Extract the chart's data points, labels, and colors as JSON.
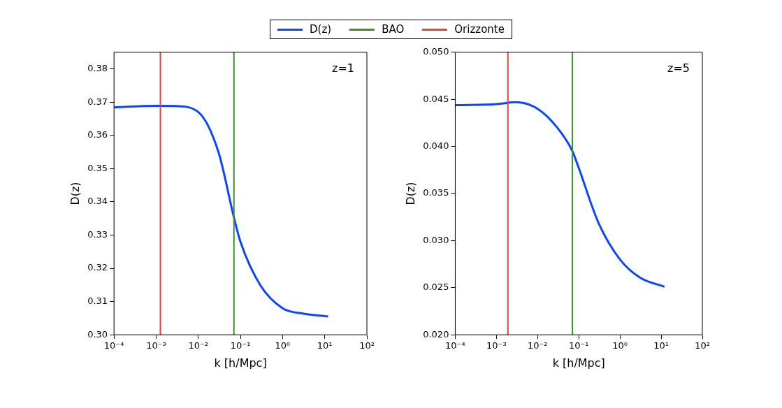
{
  "chart_data": [
    {
      "type": "line",
      "xlabel": "k [h/Mpc]",
      "ylabel": "D(z)",
      "log": "x",
      "legend": "top",
      "annotations": [
        "z=1"
      ],
      "xlim": [
        0.0001,
        100
      ],
      "xticks": [
        {
          "value": 0.0001,
          "label": "10⁻⁴"
        },
        {
          "value": 0.001,
          "label": "10⁻³"
        },
        {
          "value": 0.01,
          "label": "10⁻²"
        },
        {
          "value": 0.1,
          "label": "10⁻¹"
        },
        {
          "value": 1,
          "label": "10⁰"
        },
        {
          "value": 10,
          "label": "10¹"
        },
        {
          "value": 100,
          "label": "10²"
        }
      ],
      "ylim": [
        0.3,
        0.385
      ],
      "yticks": [
        {
          "value": 0.3,
          "label": "0.30"
        },
        {
          "value": 0.31,
          "label": "0.31"
        },
        {
          "value": 0.32,
          "label": "0.32"
        },
        {
          "value": 0.33,
          "label": "0.33"
        },
        {
          "value": 0.34,
          "label": "0.34"
        },
        {
          "value": 0.35,
          "label": "0.35"
        },
        {
          "value": 0.36,
          "label": "0.36"
        },
        {
          "value": 0.37,
          "label": "0.37"
        },
        {
          "value": 0.38,
          "label": "0.38"
        }
      ],
      "series": [
        {
          "name": "D(z)",
          "color": "#0a45ff",
          "x": [
            0.0001,
            0.001,
            0.003,
            0.01,
            0.03,
            0.07,
            0.1,
            0.3,
            1,
            3,
            12
          ],
          "values": [
            0.3684,
            0.3689,
            0.3688,
            0.367,
            0.355,
            0.3353,
            0.328,
            0.3148,
            0.308,
            0.3064,
            0.3055
          ]
        }
      ],
      "ref_lines": [
        {
          "axis": "x",
          "value": 0.07,
          "label": "BAO",
          "color": "#3c8f2c"
        },
        {
          "axis": "x",
          "value": 0.00126,
          "label": "Orizzonte",
          "color": "#e8413c"
        }
      ]
    },
    {
      "type": "line",
      "xlabel": "k [h/Mpc]",
      "ylabel": "D(z)",
      "log": "x",
      "annotations": [
        "z=5"
      ],
      "xlim": [
        0.0001,
        100
      ],
      "xticks": [
        {
          "value": 0.0001,
          "label": "10⁻⁴"
        },
        {
          "value": 0.001,
          "label": "10⁻³"
        },
        {
          "value": 0.01,
          "label": "10⁻²"
        },
        {
          "value": 0.1,
          "label": "10⁻¹"
        },
        {
          "value": 1,
          "label": "10⁰"
        },
        {
          "value": 10,
          "label": "10¹"
        },
        {
          "value": 100,
          "label": "10²"
        }
      ],
      "ylim": [
        0.02,
        0.05
      ],
      "yticks": [
        {
          "value": 0.02,
          "label": "0.020"
        },
        {
          "value": 0.025,
          "label": "0.025"
        },
        {
          "value": 0.03,
          "label": "0.030"
        },
        {
          "value": 0.035,
          "label": "0.035"
        },
        {
          "value": 0.04,
          "label": "0.040"
        },
        {
          "value": 0.045,
          "label": "0.045"
        },
        {
          "value": 0.05,
          "label": "0.050"
        }
      ],
      "series": [
        {
          "color": "#0a45ff",
          "x": [
            0.0001,
            0.001,
            0.003,
            0.01,
            0.03,
            0.07,
            0.1,
            0.3,
            1,
            3,
            12
          ],
          "values": [
            0.04438,
            0.0445,
            0.0447,
            0.044,
            0.042,
            0.0395,
            0.0377,
            0.0319,
            0.028,
            0.0261,
            0.0251
          ]
        }
      ],
      "ref_lines": [
        {
          "axis": "x",
          "value": 0.0019,
          "color": "#e8413c"
        },
        {
          "axis": "x",
          "value": 0.07,
          "color": "#3c8f2c"
        }
      ]
    }
  ]
}
